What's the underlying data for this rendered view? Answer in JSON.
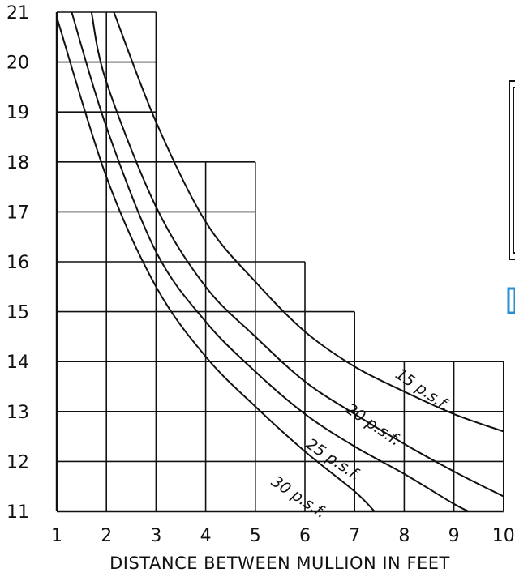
{
  "chart_data": {
    "type": "line",
    "xlabel": "DISTANCE BETWEEN MULLION IN FEET",
    "ylabel": "",
    "title": "",
    "xlim": [
      1,
      10
    ],
    "ylim": [
      11,
      21
    ],
    "x_ticks": [
      "1",
      "2",
      "3",
      "4",
      "5",
      "6",
      "7",
      "8",
      "9",
      "10"
    ],
    "y_ticks": [
      "11",
      "12",
      "13",
      "14",
      "15",
      "16",
      "17",
      "18",
      "19",
      "20",
      "21"
    ],
    "grid": true,
    "grid_steps": [
      {
        "x_from": 1,
        "x_to": 3,
        "y_top": 21
      },
      {
        "x_from": 3,
        "x_to": 5,
        "y_top": 18
      },
      {
        "x_from": 5,
        "x_to": 6,
        "y_top": 16
      },
      {
        "x_from": 6,
        "x_to": 7,
        "y_top": 15
      },
      {
        "x_from": 7,
        "x_to": 10,
        "y_top": 14
      }
    ],
    "series": [
      {
        "name": "15 p.s.f.",
        "x": [
          2.15,
          3,
          4,
          5,
          6,
          7,
          8,
          9,
          10
        ],
        "y": [
          21,
          18.8,
          16.8,
          15.6,
          14.6,
          13.9,
          13.4,
          12.95,
          12.6
        ]
      },
      {
        "name": "20 p.s.f.",
        "x": [
          1.7,
          2,
          3,
          4,
          5,
          6,
          7,
          8,
          9,
          10
        ],
        "y": [
          21,
          19.6,
          17.1,
          15.5,
          14.5,
          13.6,
          12.95,
          12.35,
          11.8,
          11.3
        ]
      },
      {
        "name": "25 p.s.f.",
        "x": [
          1.3,
          2,
          3,
          4,
          5,
          6,
          7,
          8,
          9,
          9.3
        ],
        "y": [
          21,
          18.7,
          16.2,
          14.8,
          13.8,
          12.95,
          12.3,
          11.75,
          11.15,
          11
        ]
      },
      {
        "name": "30 p.s.f.",
        "x": [
          1,
          2,
          3,
          4,
          5,
          6,
          7,
          7.4
        ],
        "y": [
          20.9,
          17.7,
          15.5,
          14.1,
          13.1,
          12.2,
          11.4,
          11
        ]
      }
    ],
    "curve_labels": [
      {
        "series": "15 p.s.f.",
        "x": 7.8,
        "y": 13.7,
        "text": "15 p.s.f."
      },
      {
        "series": "20 p.s.f.",
        "x": 6.8,
        "y": 13.0,
        "text": "20 p.s.f."
      },
      {
        "series": "25 p.s.f.",
        "x": 6.0,
        "y": 12.3,
        "text": "25 p.s.f."
      },
      {
        "series": "30 p.s.f.",
        "x": 5.3,
        "y": 11.55,
        "text": "30 p.s.f."
      }
    ],
    "side_fragment_color": "#2a8fd0"
  }
}
